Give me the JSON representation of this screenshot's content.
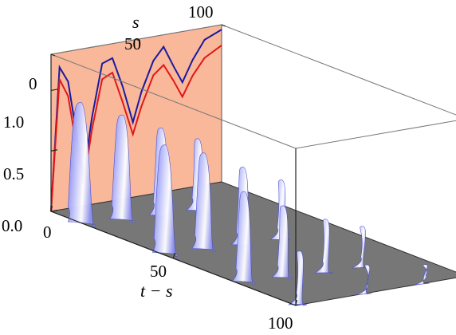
{
  "chart_data": {
    "type": "surface3d",
    "axes": {
      "x": {
        "label": "t − s",
        "ticks": [
          "0",
          "50",
          "100"
        ],
        "range": [
          0,
          100
        ]
      },
      "y": {
        "label": "s",
        "ticks": [
          "0",
          "50",
          "100"
        ],
        "range": [
          0,
          100
        ]
      },
      "z": {
        "label": "",
        "ticks": [
          "0.0",
          "0.5",
          "1.0"
        ],
        "range": [
          0,
          1.3
        ]
      }
    },
    "back_panel": {
      "fill_color": "#f9b89a",
      "series": [
        {
          "color": "#1a1aa0",
          "points": [
            [
              0,
              0.0
            ],
            [
              5,
              1.18
            ],
            [
              10,
              1.05
            ],
            [
              15,
              0.6
            ],
            [
              19,
              0.25
            ],
            [
              24,
              0.72
            ],
            [
              30,
              1.15
            ],
            [
              36,
              1.18
            ],
            [
              42,
              0.93
            ],
            [
              48,
              0.62
            ],
            [
              53,
              0.86
            ],
            [
              60,
              1.1
            ],
            [
              66,
              1.2
            ],
            [
              72,
              1.02
            ],
            [
              77,
              0.88
            ],
            [
              83,
              1.05
            ],
            [
              90,
              1.2
            ],
            [
              100,
              1.26
            ]
          ]
        },
        {
          "color": "#e01818",
          "points": [
            [
              0,
              0.0
            ],
            [
              5,
              1.08
            ],
            [
              10,
              0.93
            ],
            [
              15,
              0.5
            ],
            [
              19,
              0.18
            ],
            [
              24,
              0.62
            ],
            [
              30,
              1.02
            ],
            [
              36,
              1.06
            ],
            [
              42,
              0.8
            ],
            [
              48,
              0.52
            ],
            [
              53,
              0.74
            ],
            [
              60,
              0.98
            ],
            [
              66,
              1.05
            ],
            [
              72,
              0.9
            ],
            [
              77,
              0.76
            ],
            [
              83,
              0.92
            ],
            [
              90,
              1.05
            ],
            [
              100,
              1.13
            ]
          ]
        }
      ]
    },
    "floor_color": "#777777",
    "blob_color": "#6f74e8",
    "surface_peaks": [
      {
        "x": 8,
        "y": 6,
        "z": 0.95
      },
      {
        "x": 11,
        "y": 26,
        "z": 0.82
      },
      {
        "x": 13,
        "y": 46,
        "z": 0.68
      },
      {
        "x": 14,
        "y": 66,
        "z": 0.55
      },
      {
        "x": 41,
        "y": 8,
        "z": 0.85
      },
      {
        "x": 43,
        "y": 28,
        "z": 0.75
      },
      {
        "x": 45,
        "y": 48,
        "z": 0.6
      },
      {
        "x": 46,
        "y": 69,
        "z": 0.45
      },
      {
        "x": 72,
        "y": 10,
        "z": 0.7
      },
      {
        "x": 74,
        "y": 30,
        "z": 0.55
      },
      {
        "x": 76,
        "y": 52,
        "z": 0.4
      },
      {
        "x": 77,
        "y": 72,
        "z": 0.3
      },
      {
        "x": 96,
        "y": 8,
        "z": 0.4
      },
      {
        "x": 97,
        "y": 46,
        "z": 0.2
      },
      {
        "x": 97,
        "y": 80,
        "z": 0.12
      }
    ]
  }
}
